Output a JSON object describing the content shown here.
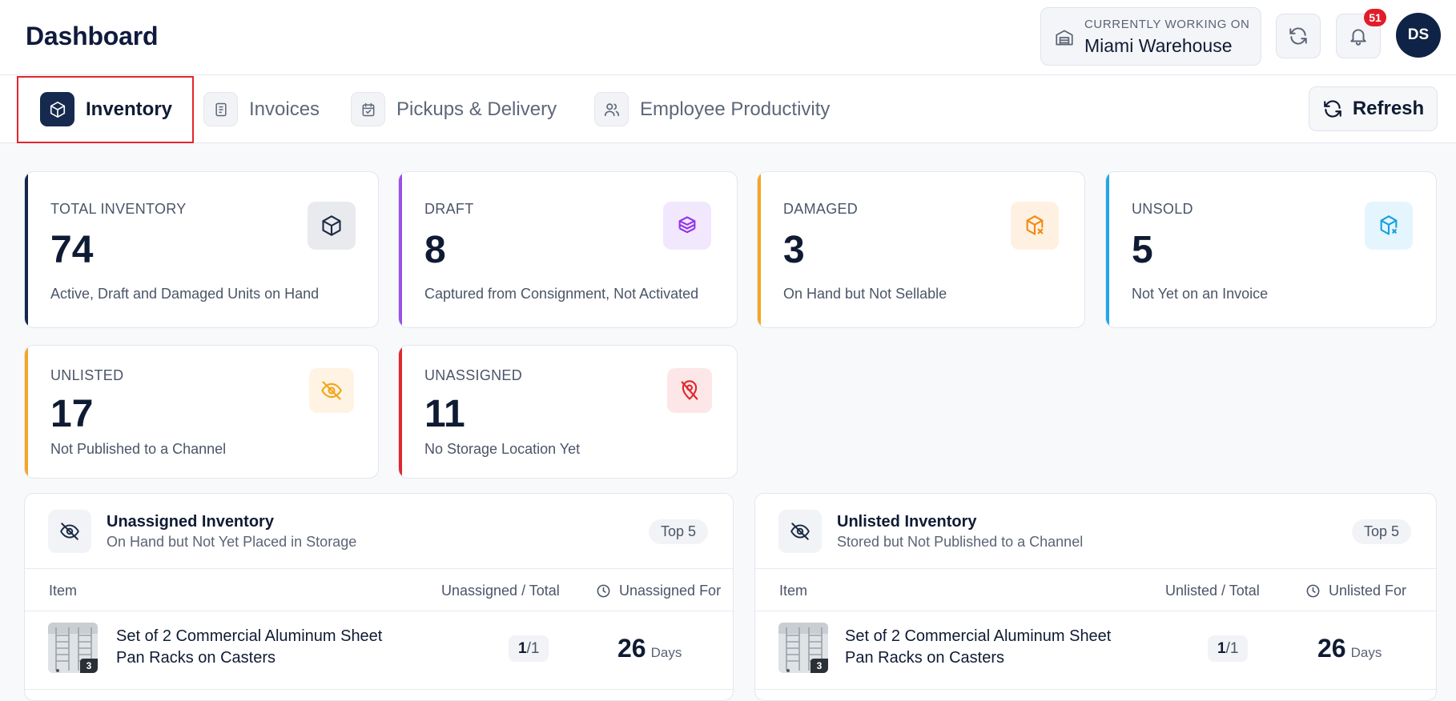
{
  "header": {
    "title": "Dashboard",
    "working_on_caption": "CURRENTLY WORKING ON",
    "warehouse_name": "Miami Warehouse",
    "notification_count": "51",
    "avatar_initials": "DS"
  },
  "tabs": [
    {
      "label": "Inventory",
      "icon": "box-icon",
      "active": true
    },
    {
      "label": "Invoices",
      "icon": "document-icon",
      "active": false
    },
    {
      "label": "Pickups & Delivery",
      "icon": "calendar-check-icon",
      "active": false
    },
    {
      "label": "Employee Productivity",
      "icon": "users-icon",
      "active": false
    }
  ],
  "refresh_label": "Refresh",
  "cards": [
    {
      "label": "TOTAL INVENTORY",
      "value": "74",
      "desc": "Active, Draft and Damaged Units on Hand",
      "accent": "#13254a",
      "icon": "box-icon",
      "icon_bg": "#e8eaee",
      "icon_color": "#1b2a44"
    },
    {
      "label": "DRAFT",
      "value": "8",
      "desc": "Captured from Consignment, Not Activated",
      "accent": "#9b4ee8",
      "icon": "boxes-stack-icon",
      "icon_bg": "#f1e8fd",
      "icon_color": "#9333ea"
    },
    {
      "label": "DAMAGED",
      "value": "3",
      "desc": "On Hand but Not Sellable",
      "accent": "#f5a524",
      "icon": "box-damaged-icon",
      "icon_bg": "#fff1e2",
      "icon_color": "#f28a10"
    },
    {
      "label": "UNSOLD",
      "value": "5",
      "desc": "Not Yet on an Invoice",
      "accent": "#22a7e6",
      "icon": "box-x-icon",
      "icon_bg": "#e5f5fd",
      "icon_color": "#14a0e0"
    },
    {
      "label": "UNLISTED",
      "value": "17",
      "desc": "Not Published to a Channel",
      "accent": "#f5a524",
      "icon": "eye-off-icon",
      "icon_bg": "#fff3e3",
      "icon_color": "#f2a516"
    },
    {
      "label": "UNASSIGNED",
      "value": "11",
      "desc": "No Storage Location Yet",
      "accent": "#e0262d",
      "icon": "location-off-icon",
      "icon_bg": "#fde6e7",
      "icon_color": "#e0262d"
    }
  ],
  "panels": [
    {
      "title": "Unassigned Inventory",
      "subtitle": "On Hand but Not Yet Placed in Storage",
      "badge": "Top 5",
      "columns": {
        "item": "Item",
        "ratio": "Unassigned / Total",
        "duration": "Unassigned For"
      },
      "rows": [
        {
          "name_line1": "Set of 2 Commercial Aluminum Sheet",
          "name_line2": "Pan Racks on Casters",
          "ratio_num": "1",
          "ratio_den": "/1",
          "days": "26",
          "days_unit": "Days",
          "thumb_qty": "3"
        }
      ]
    },
    {
      "title": "Unlisted Inventory",
      "subtitle": "Stored but Not Published to a Channel",
      "badge": "Top 5",
      "columns": {
        "item": "Item",
        "ratio": "Unlisted / Total",
        "duration": "Unlisted For"
      },
      "rows": [
        {
          "name_line1": "Set of 2 Commercial Aluminum Sheet",
          "name_line2": "Pan Racks on Casters",
          "ratio_num": "1",
          "ratio_den": "/1",
          "days": "26",
          "days_unit": "Days",
          "thumb_qty": "3"
        }
      ]
    }
  ]
}
